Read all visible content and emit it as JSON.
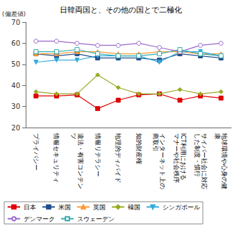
{
  "chart_data": {
    "type": "line",
    "title": "日韓両国と、その他の国とで二極化",
    "y_label": "(偏差値)",
    "categories": [
      "プライバシー",
      "情報セキュリティ",
      "違法・有害コンテンツ",
      "情報リテラシー",
      "地理的ディバイド",
      "知的財産権",
      "インターネット上の商取引",
      "ICT利用におけるマナーや社会秩序",
      "サイバー社会に対応した制度・慣行",
      "地球環境や心身の健康"
    ],
    "series": [
      {
        "name": "日本",
        "color": "#e00000",
        "marker": "square",
        "values": [
          35,
          35,
          35.5,
          29,
          33,
          35.5,
          36,
          33,
          35,
          34
        ]
      },
      {
        "name": "米国",
        "color": "#1f4e8c",
        "marker": "square",
        "values": [
          55,
          54,
          55,
          53,
          53,
          53,
          52,
          55,
          54,
          53
        ]
      },
      {
        "name": "英国",
        "color": "#ff9933",
        "marker": "triangle",
        "values": [
          55,
          55,
          56,
          56,
          55,
          55,
          56,
          56,
          55,
          55
        ]
      },
      {
        "name": "韓国",
        "color": "#99aa22",
        "marker": "diamond",
        "values": [
          37,
          36,
          36,
          45,
          39,
          36,
          36,
          38,
          36,
          37
        ]
      },
      {
        "name": "シンガポール",
        "color": "#33aadd",
        "marker": "triangle-down",
        "values": [
          51,
          52,
          52,
          54,
          54,
          54,
          51,
          56,
          56,
          54
        ]
      },
      {
        "name": "デンマーク",
        "color": "#9966cc",
        "marker": "circle-open",
        "values": [
          61,
          61,
          60,
          59,
          59,
          60,
          58,
          56,
          59,
          60
        ]
      },
      {
        "name": "スウェーデン",
        "color": "#33aaaa",
        "marker": "square-open",
        "values": [
          56,
          56,
          57,
          55,
          54,
          54,
          55,
          57,
          55,
          54
        ]
      }
    ],
    "ylim": [
      20,
      70
    ],
    "yticks": [
      20,
      30,
      40,
      50,
      60,
      70
    ],
    "grid": false,
    "legend": "bottom"
  }
}
